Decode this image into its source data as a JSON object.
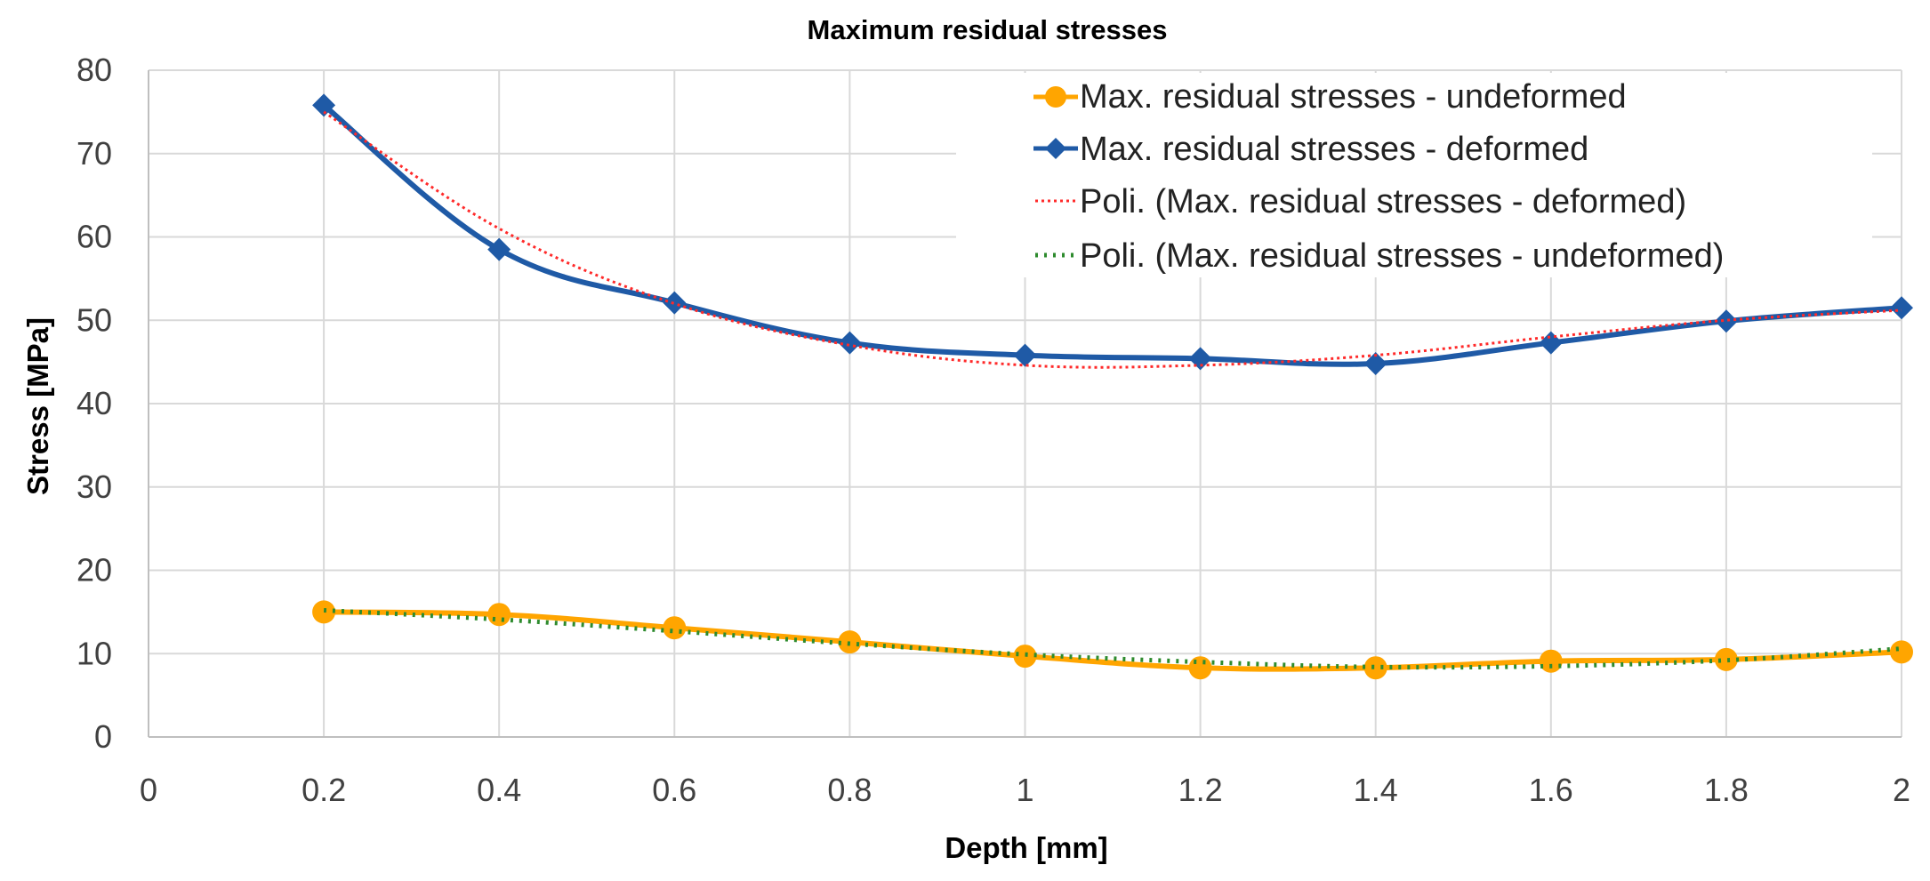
{
  "chart_data": {
    "type": "line",
    "title": "Maximum residual stresses",
    "xlabel": "Depth [mm]",
    "ylabel": "Stress [MPa]",
    "xlim": [
      0,
      2
    ],
    "ylim": [
      0,
      80
    ],
    "xticks": [
      "0",
      "0.2",
      "0.4",
      "0.6",
      "0.8",
      "1",
      "1.2",
      "1.4",
      "1.6",
      "1.8",
      "2"
    ],
    "yticks": [
      "0",
      "10",
      "20",
      "30",
      "40",
      "50",
      "60",
      "70",
      "80"
    ],
    "legend_position": "top-right",
    "x": [
      0.2,
      0.4,
      0.6,
      0.8,
      1.0,
      1.2,
      1.4,
      1.6,
      1.8,
      2.0
    ],
    "series": [
      {
        "name": "Max. residual stresses - undeformed",
        "style": "line-circle",
        "color": "#FFA500",
        "values": [
          15.0,
          14.7,
          13.1,
          11.4,
          9.7,
          8.3,
          8.3,
          9.1,
          9.3,
          10.2
        ]
      },
      {
        "name": "Max. residual stresses - deformed",
        "style": "line-diamond",
        "color": "#1F5AA6",
        "values": [
          75.8,
          58.5,
          52.1,
          47.3,
          45.8,
          45.4,
          44.8,
          47.3,
          49.9,
          51.5
        ]
      },
      {
        "name": "Poli. (Max. residual stresses - deformed)",
        "style": "dotted",
        "color": "#FF2A2A",
        "values": [
          75.0,
          61.0,
          52.0,
          47.0,
          44.6,
          44.6,
          45.8,
          48.0,
          50.0,
          51.2
        ]
      },
      {
        "name": "Poli. (Max. residual stresses - undeformed)",
        "style": "dotted",
        "color": "#2E8B2E",
        "values": [
          15.2,
          14.1,
          12.7,
          11.2,
          9.9,
          9.0,
          8.4,
          8.5,
          9.2,
          10.6
        ]
      }
    ]
  }
}
